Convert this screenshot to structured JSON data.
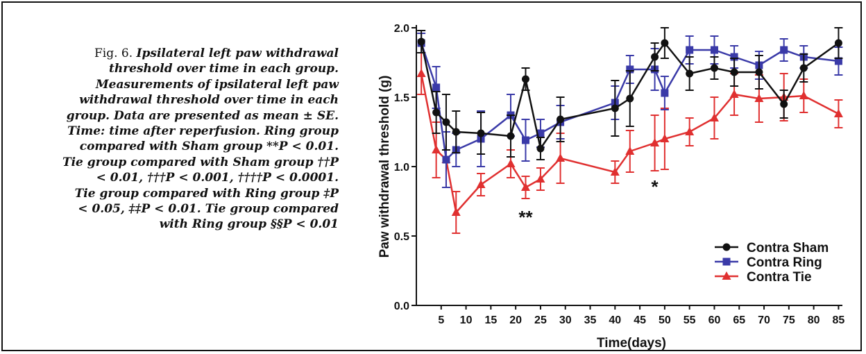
{
  "caption": {
    "lead": "Fig. 6.",
    "lines": [
      "Ipsilateral left paw withdrawal",
      "threshold over time in each group.",
      "Measurements of ipsilateral left paw",
      "withdrawal threshold over time in each",
      "group. Data are presented as mean ± SE.",
      "Time: time after reperfusion. Ring group",
      "compared with Sham group **P < 0.01.",
      "Tie group compared with Sham group ††P",
      "< 0.01, †††P < 0.001, ††††P < 0.0001.",
      "Tie group compared with Ring group ‡P",
      "< 0.05, ‡‡P < 0.01. Tie group compared",
      "with Ring group §§P < 0.01"
    ]
  },
  "chart_data": {
    "type": "line",
    "title": "",
    "xlabel": "Time(days)",
    "ylabel": "Paw withdrawal threshold (g)",
    "xlim": [
      0,
      86
    ],
    "ylim": [
      0,
      2.0
    ],
    "xticks": [
      "5",
      "10",
      "15",
      "20",
      "25",
      "30",
      "35",
      "40",
      "45",
      "50",
      "55",
      "60",
      "65",
      "70",
      "75",
      "80",
      "85"
    ],
    "yticks": [
      "0.0",
      "0.5",
      "1.0",
      "1.5",
      "2.0"
    ],
    "legend_position": "bottom-right",
    "colors": {
      "sham": "#111111",
      "ring": "#3a3aa8",
      "tie": "#e03030"
    },
    "series": [
      {
        "name": "Contra Sham",
        "marker": "circle",
        "x": [
          1,
          4,
          6,
          8,
          13,
          19,
          22,
          25,
          29,
          40,
          43,
          48,
          50,
          55,
          60,
          64,
          69,
          74,
          78,
          85
        ],
        "y": [
          1.9,
          1.39,
          1.32,
          1.25,
          1.24,
          1.22,
          1.63,
          1.13,
          1.34,
          1.42,
          1.49,
          1.79,
          1.89,
          1.67,
          1.71,
          1.68,
          1.68,
          1.45,
          1.71,
          1.89
        ],
        "err": [
          0.08,
          0.15,
          0.2,
          0.15,
          0.15,
          0.15,
          0.08,
          0.08,
          0.16,
          0.2,
          0.2,
          0.1,
          0.11,
          0.12,
          0.08,
          0.1,
          0.12,
          0.1,
          0.1,
          0.11
        ]
      },
      {
        "name": "Contra Ring",
        "marker": "square",
        "x": [
          1,
          4,
          6,
          8,
          13,
          19,
          22,
          25,
          29,
          40,
          43,
          48,
          50,
          55,
          60,
          64,
          69,
          74,
          78,
          85
        ],
        "y": [
          1.89,
          1.57,
          1.05,
          1.12,
          1.2,
          1.37,
          1.19,
          1.24,
          1.32,
          1.46,
          1.7,
          1.7,
          1.53,
          1.84,
          1.84,
          1.79,
          1.73,
          1.84,
          1.79,
          1.76
        ],
        "err": [
          0.07,
          0.15,
          0.2,
          0.12,
          0.2,
          0.15,
          0.15,
          0.1,
          0.12,
          0.12,
          0.1,
          0.15,
          0.12,
          0.1,
          0.1,
          0.08,
          0.1,
          0.08,
          0.08,
          0.1
        ]
      },
      {
        "name": "Contra Tie",
        "marker": "triangle",
        "x": [
          1,
          4,
          6,
          8,
          13,
          19,
          22,
          25,
          29,
          40,
          43,
          48,
          50,
          55,
          60,
          64,
          69,
          74,
          78,
          85
        ],
        "y": [
          1.67,
          1.12,
          1.05,
          0.67,
          0.87,
          1.02,
          0.85,
          0.91,
          1.06,
          0.96,
          1.11,
          1.17,
          1.2,
          1.25,
          1.35,
          1.52,
          1.49,
          1.5,
          1.51,
          1.38
        ],
        "err": [
          0.15,
          0.2,
          0.2,
          0.15,
          0.08,
          0.1,
          0.08,
          0.08,
          0.18,
          0.08,
          0.15,
          0.2,
          0.22,
          0.1,
          0.15,
          0.15,
          0.17,
          0.17,
          0.12,
          0.1
        ]
      }
    ],
    "annotations": [
      {
        "text": "**",
        "x": 22,
        "y": 0.68
      },
      {
        "text": "*",
        "x": 48,
        "y": 0.9
      }
    ]
  }
}
